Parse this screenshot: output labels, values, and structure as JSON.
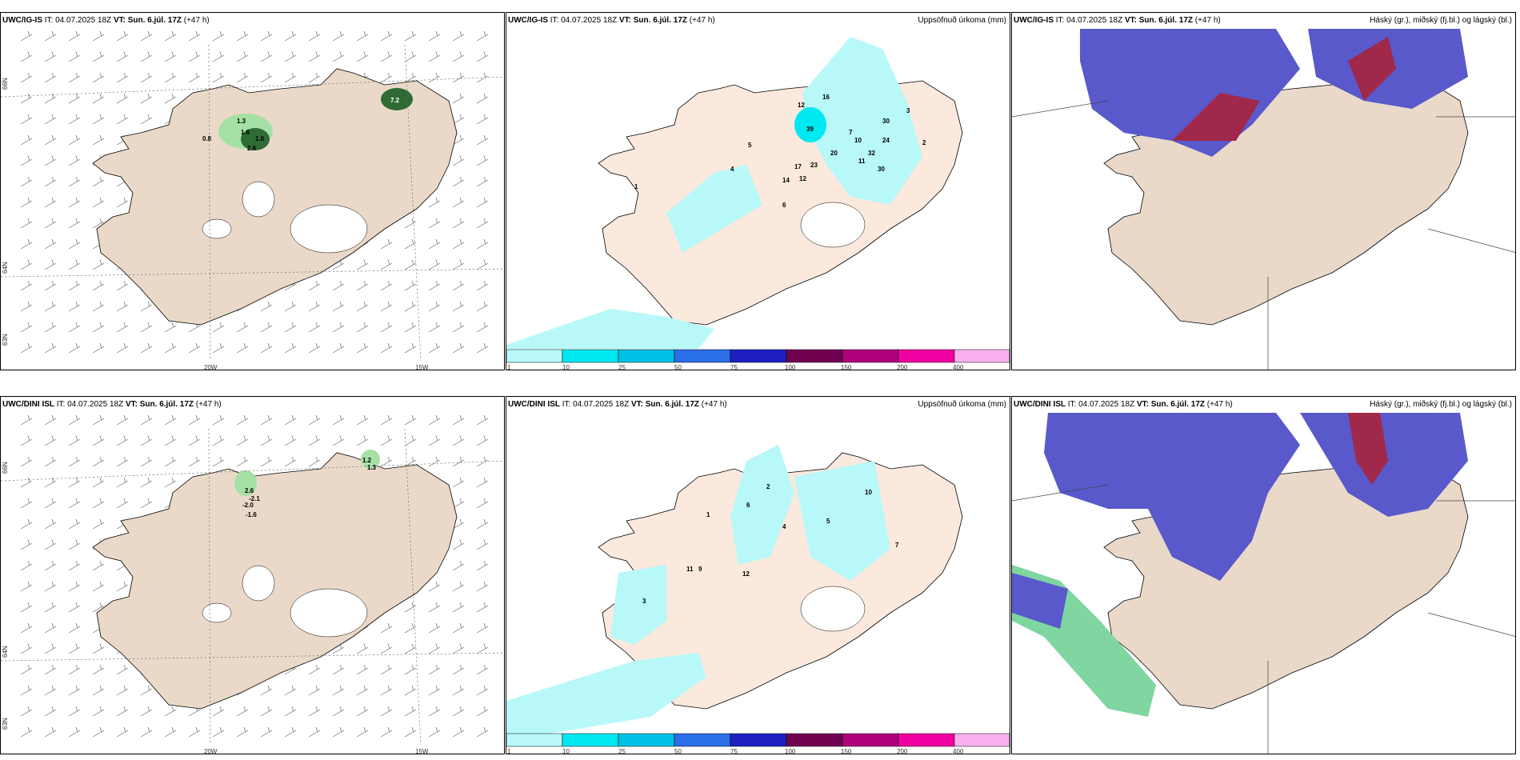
{
  "rows": [
    {
      "model": "UWC/IG-IS",
      "it_label": "IT: 04.07.2025 18Z",
      "vt_label": "VT: Sun. 6.júl. 17Z",
      "lead": "(+47 h)",
      "wind_values": [
        "0.8",
        "1.3",
        "1.6",
        "1.0",
        "2.6",
        "7.2"
      ],
      "precip_values": [
        "39",
        "16",
        "12",
        "30",
        "32",
        "30",
        "24",
        "20",
        "23",
        "17",
        "14",
        "12",
        "11",
        "10",
        "7",
        "6",
        "5",
        "4",
        "3",
        "2",
        "1"
      ]
    },
    {
      "model": "UWC/DINI ISL",
      "it_label": "IT: 04.07.2025 18Z",
      "vt_label": "VT: Sun. 6.júl. 17Z",
      "lead": "(+47 h)",
      "wind_values": [
        "1.2",
        "1.3",
        "2.6",
        "-2.1",
        "-2.0",
        "-1.6"
      ],
      "precip_values": [
        "11",
        "10",
        "12",
        "9",
        "7",
        "6",
        "5",
        "4",
        "3",
        "2",
        "1"
      ]
    }
  ],
  "precip_title": "Uppsöfnuð úrkoma (mm)",
  "cloud_title": "Háský (gr.), miðský (fj.bl.) og lágský (bl.)",
  "axis_labels": {
    "lat66": "66N",
    "lat64": "64N",
    "lat63": "63N",
    "lon20": "20W",
    "lon15": "15W"
  },
  "colorbar": {
    "ticks": [
      "1",
      "10",
      "25",
      "50",
      "75",
      "100",
      "150",
      "200",
      "400"
    ],
    "colors": [
      "#b8f8f8",
      "#00e8f0",
      "#00c0e8",
      "#2a6ee8",
      "#2020c0",
      "#700050",
      "#b0007a",
      "#f000a0",
      "#f8b0f0"
    ]
  }
}
